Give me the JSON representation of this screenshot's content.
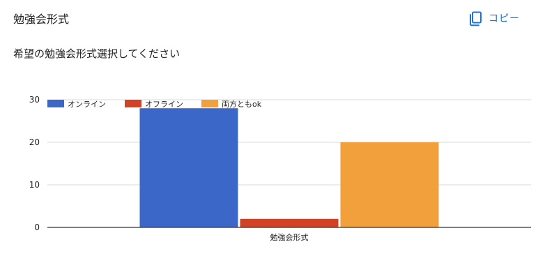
{
  "header": {
    "title": "勉強会形式",
    "copy_label": "コピー"
  },
  "question": "希望の勉強会形式選択してください",
  "icons": {
    "copy": "copy-icon"
  },
  "colors": {
    "accent": "#1a73e8",
    "gridline": "#d9d9d9",
    "axis": "#333333"
  },
  "chart_data": {
    "type": "bar",
    "categories": [
      "勉強会形式"
    ],
    "series": [
      {
        "name": "オンライン",
        "values": [
          28
        ],
        "color": "#3b67c9"
      },
      {
        "name": "オフライン",
        "values": [
          2
        ],
        "color": "#d24325"
      },
      {
        "name": "両方ともok",
        "values": [
          20
        ],
        "color": "#f2a03b"
      }
    ],
    "ylim": [
      0,
      30
    ],
    "yticks": [
      0,
      10,
      20,
      30
    ],
    "xlabel": "",
    "ylabel": "",
    "grid": true,
    "legend": "top-left"
  }
}
